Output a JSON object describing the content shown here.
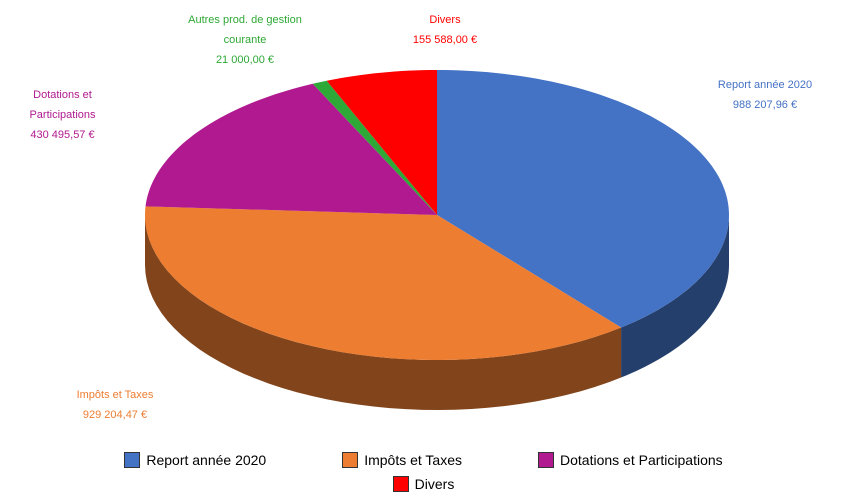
{
  "chart_data": {
    "type": "pie",
    "categories": [
      "Report année 2020",
      "Impôts et Taxes",
      "Dotations et Participations",
      "Autres prod. de gestion courante",
      "Divers"
    ],
    "values": [
      988207.96,
      929204.47,
      430495.57,
      21000.0,
      155588.0
    ],
    "value_labels": [
      "988 207,96 €",
      "929 204,47 €",
      "430 495,57 €",
      "21 000,00 €",
      "155 588,00 €"
    ],
    "colors": [
      "#4472c4",
      "#ed7d31",
      "#b0198f",
      "#2ea836",
      "#ff0000"
    ],
    "legend": "bottom"
  }
}
